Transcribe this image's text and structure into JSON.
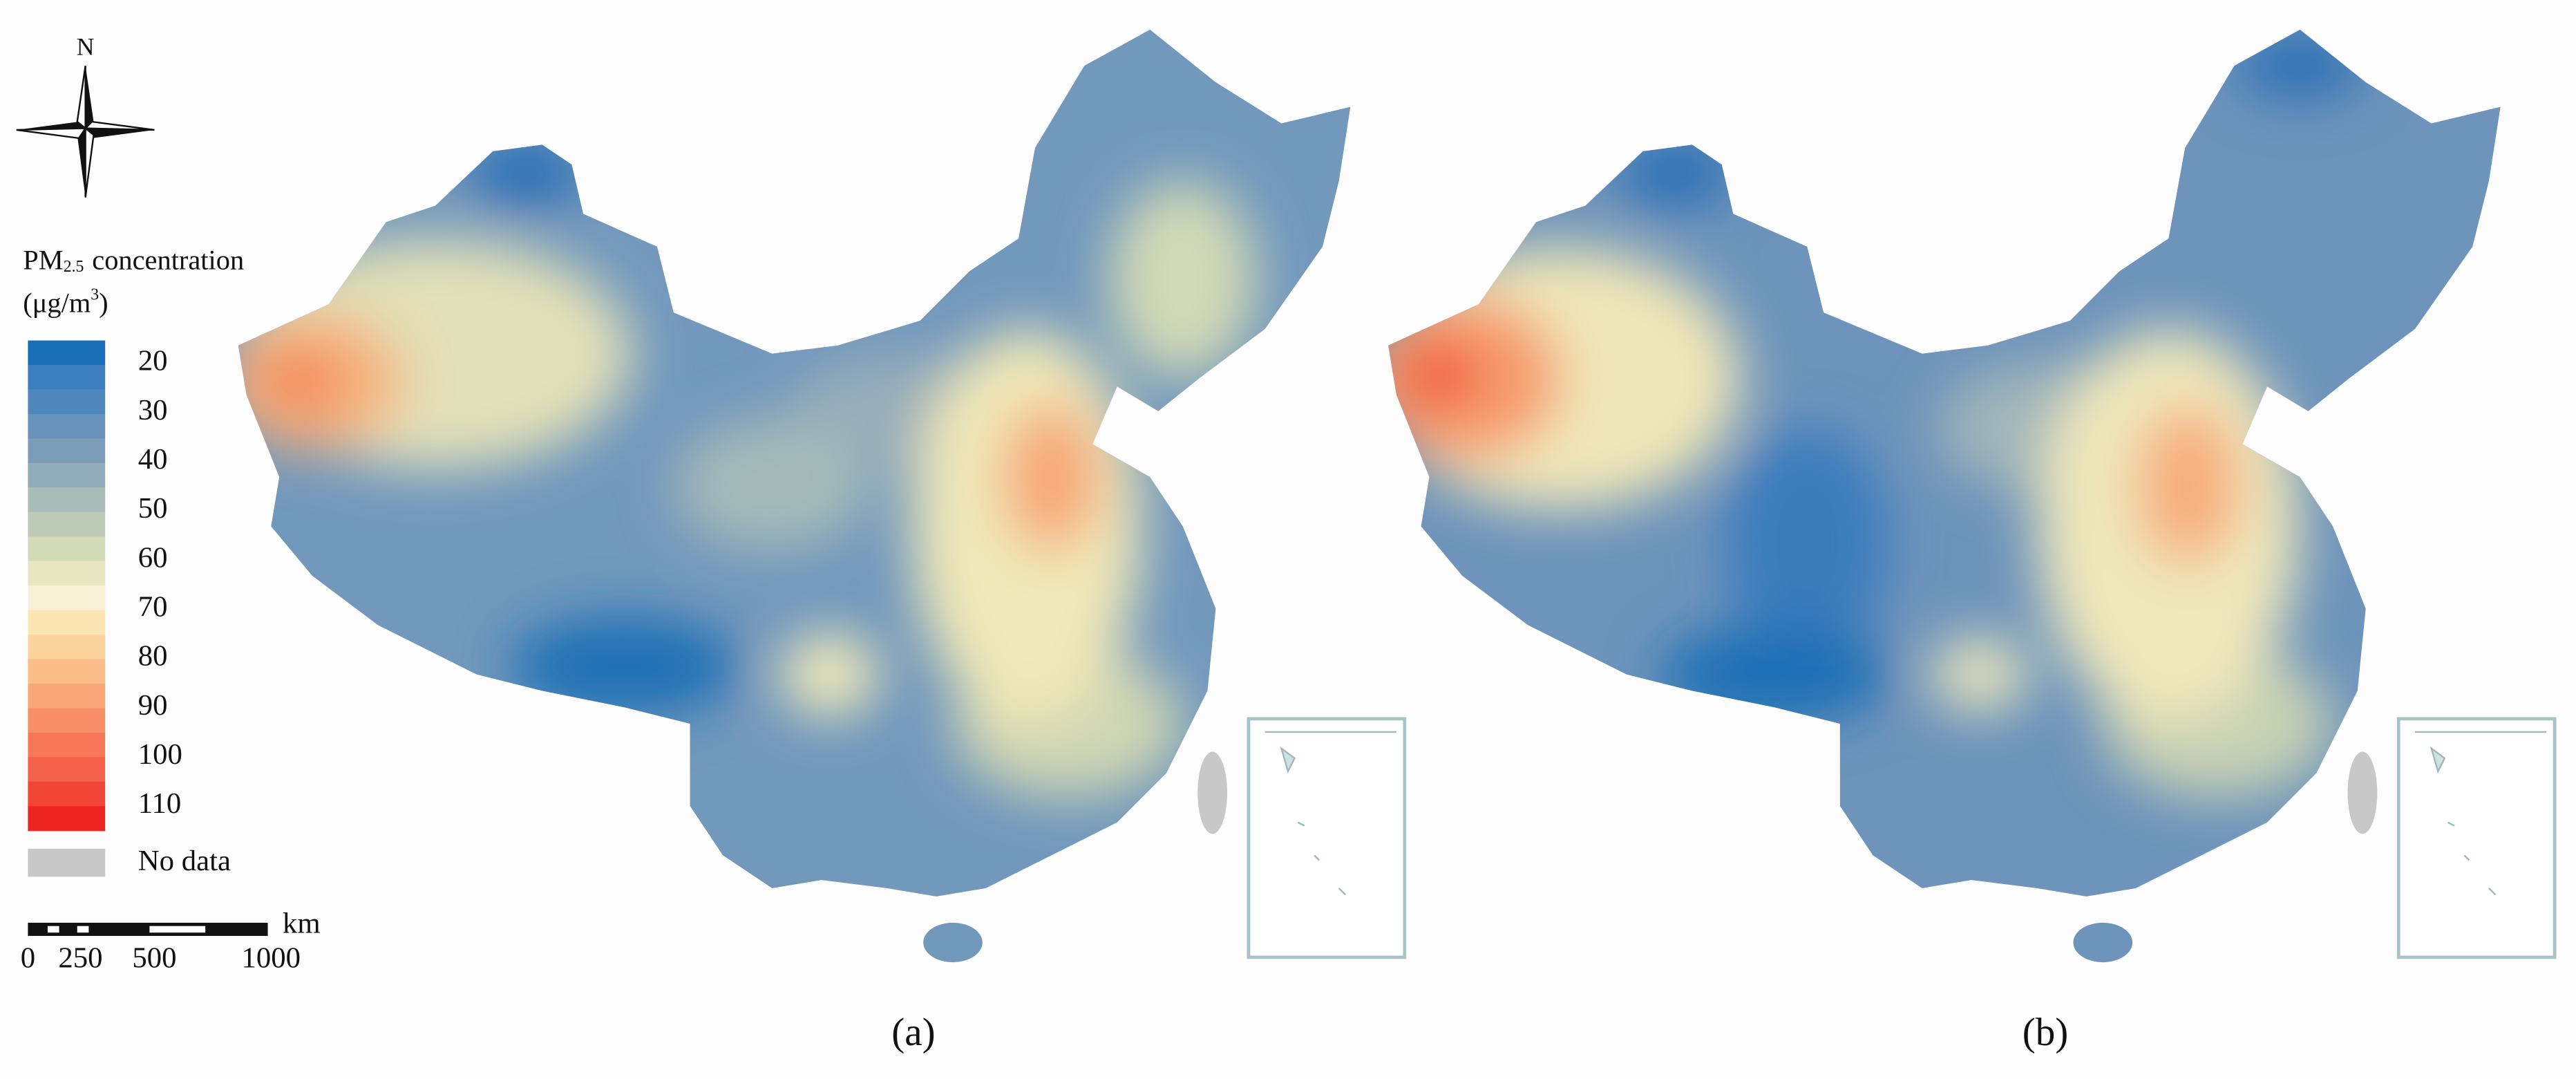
{
  "compass": {
    "north": "N"
  },
  "legend": {
    "title_main": "PM",
    "title_sub": "2.5",
    "title_rest": "concentration",
    "unit_main": "(μg/m",
    "unit_sup": "3",
    "unit_end": ")",
    "ticks": [
      20,
      30,
      40,
      50,
      60,
      70,
      80,
      90,
      100,
      110
    ],
    "colors": [
      "#1a6fb8",
      "#3b7fc0",
      "#5088bd",
      "#6792ba",
      "#7c9db8",
      "#92abb8",
      "#a8bcb8",
      "#bdcbb6",
      "#d2dab7",
      "#e6e6c0",
      "#f7f1d8",
      "#fbe6b3",
      "#fcd39d",
      "#fbbe89",
      "#f9a777",
      "#f88f66",
      "#f67858",
      "#f4614a",
      "#f14636",
      "#ee2420"
    ],
    "no_data": "No data",
    "no_data_color": "#c8c8c8"
  },
  "scale_bar": {
    "unit": "km",
    "labels": [
      "0",
      "250",
      "500",
      "1000"
    ]
  },
  "panels": [
    {
      "label": "(a)"
    },
    {
      "label": "(b)"
    }
  ]
}
